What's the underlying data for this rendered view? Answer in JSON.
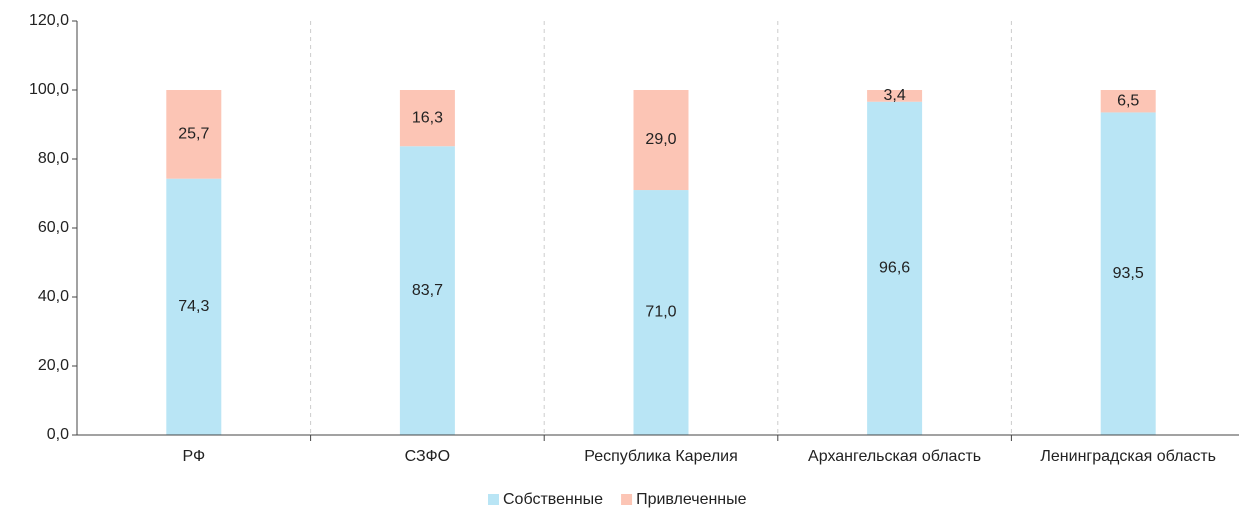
{
  "chart_data": {
    "type": "stacked_bar",
    "categories": [
      "РФ",
      "СЗФО",
      "Республика Карелия",
      "Архангельская область",
      "Ленинградская область"
    ],
    "series": [
      {
        "name": "Собственные",
        "color": "#b9e5f5",
        "values": [
          74.3,
          83.7,
          71.0,
          96.6,
          93.5
        ],
        "value_labels": [
          "74,3",
          "83,7",
          "71,0",
          "96,6",
          "93,5"
        ]
      },
      {
        "name": "Привлеченные",
        "color": "#fcc5b5",
        "values": [
          25.7,
          16.3,
          29.0,
          3.4,
          6.5
        ],
        "value_labels": [
          "25,7",
          "16,3",
          "29,0",
          "3,4",
          "6,5"
        ]
      }
    ],
    "ylim": [
      0,
      120
    ],
    "yticks": [
      {
        "value": 0,
        "label": "0,0"
      },
      {
        "value": 20,
        "label": "20,0"
      },
      {
        "value": 40,
        "label": "40,0"
      },
      {
        "value": 60,
        "label": "60,0"
      },
      {
        "value": 80,
        "label": "80,0"
      },
      {
        "value": 100,
        "label": "100,0"
      },
      {
        "value": 120,
        "label": "120,0"
      }
    ],
    "legend": "bottom"
  }
}
